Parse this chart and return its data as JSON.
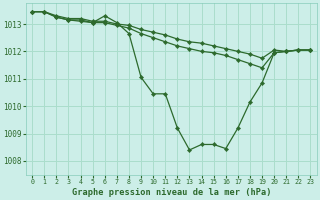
{
  "bg_color": "#cceee8",
  "line_color": "#2d6a2d",
  "grid_color": "#aaddcc",
  "xlabel": "Graphe pression niveau de la mer (hPa)",
  "ylim": [
    1007.5,
    1013.75
  ],
  "xlim": [
    -0.5,
    23.5
  ],
  "yticks": [
    1008,
    1009,
    1010,
    1011,
    1012,
    1013
  ],
  "xticks": [
    0,
    1,
    2,
    3,
    4,
    5,
    6,
    7,
    8,
    9,
    10,
    11,
    12,
    13,
    14,
    15,
    16,
    17,
    18,
    19,
    20,
    21,
    22,
    23
  ],
  "line1_x": [
    0,
    1,
    2,
    3,
    4,
    5,
    6,
    7,
    8,
    9,
    10,
    11,
    12,
    13,
    14,
    15,
    16,
    17,
    18,
    19,
    20,
    21,
    22,
    23
  ],
  "line1_y": [
    1013.45,
    1013.45,
    1013.25,
    1013.15,
    1013.15,
    1013.05,
    1013.3,
    1013.05,
    1012.65,
    1011.05,
    1010.45,
    1010.45,
    1009.2,
    1008.4,
    1008.6,
    1008.6,
    1008.45,
    1009.2,
    1010.15,
    1010.85,
    1011.95,
    1012.0,
    1012.05,
    1012.05
  ],
  "line2_x": [
    0,
    1,
    2,
    3,
    4,
    5,
    6,
    7,
    8,
    9,
    10,
    11,
    12,
    13,
    14,
    15,
    16,
    17,
    18,
    19,
    20,
    21,
    22,
    23
  ],
  "line2_y": [
    1013.45,
    1013.45,
    1013.25,
    1013.15,
    1013.1,
    1013.05,
    1013.05,
    1012.95,
    1012.85,
    1012.65,
    1012.5,
    1012.35,
    1012.2,
    1012.1,
    1012.0,
    1011.95,
    1011.85,
    1011.7,
    1011.55,
    1011.4,
    1011.95,
    1012.0,
    1012.05,
    1012.05
  ],
  "line3_x": [
    0,
    1,
    2,
    3,
    4,
    5,
    6,
    7,
    8,
    9,
    10,
    11,
    12,
    13,
    14,
    15,
    16,
    17,
    18,
    19,
    20,
    21,
    22,
    23
  ],
  "line3_y": [
    1013.45,
    1013.45,
    1013.3,
    1013.2,
    1013.2,
    1013.1,
    1013.1,
    1013.0,
    1012.95,
    1012.8,
    1012.7,
    1012.6,
    1012.45,
    1012.35,
    1012.3,
    1012.2,
    1012.1,
    1012.0,
    1011.9,
    1011.75,
    1012.05,
    1012.0,
    1012.05,
    1012.05
  ]
}
